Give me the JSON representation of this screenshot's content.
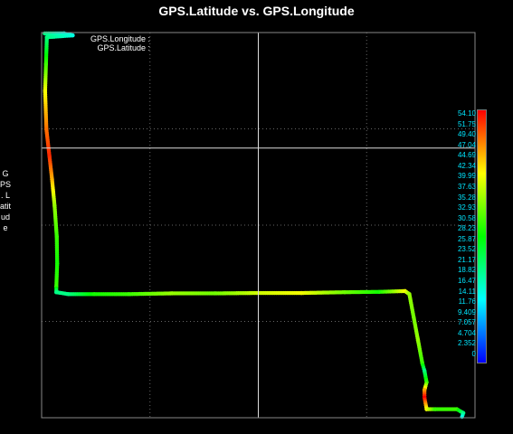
{
  "chart_data": {
    "type": "scatter",
    "title": "GPS.Latitude vs. GPS.Longitude",
    "xlabel": "",
    "ylabel": "GPS . Latitude",
    "legend_lines": [
      "GPS.Longitude :",
      "GPS.Latitude :"
    ],
    "colorbar_labels": [
      "54.10",
      "51.75",
      "49.40",
      "47.04",
      "44.69",
      "42.34",
      "39.99",
      "37.63",
      "35.28",
      "32.93",
      "30.58",
      "28.23",
      "25.87",
      "23.52",
      "21.17",
      "18.82",
      "16.47",
      "14.11",
      "11.76",
      "9.409",
      "7.057",
      "4.704",
      "2.352",
      "0"
    ],
    "colorbar_range": [
      0,
      54.1
    ],
    "grid": true,
    "grid_style": "dotted",
    "cursor": {
      "x_fraction": 0.5,
      "y_fraction": 0.3
    },
    "track": [
      [
        0.005,
        1.0,
        20
      ],
      [
        0.05,
        1.0,
        15
      ],
      [
        0.07,
        0.995,
        15
      ],
      [
        0.01,
        0.99,
        20
      ],
      [
        0.008,
        0.92,
        30
      ],
      [
        0.006,
        0.85,
        40
      ],
      [
        0.009,
        0.75,
        48
      ],
      [
        0.016,
        0.68,
        52
      ],
      [
        0.022,
        0.62,
        45
      ],
      [
        0.028,
        0.55,
        35
      ],
      [
        0.033,
        0.47,
        30
      ],
      [
        0.034,
        0.4,
        28
      ],
      [
        0.032,
        0.34,
        30
      ],
      [
        0.032,
        0.325,
        20
      ],
      [
        0.06,
        0.32,
        20
      ],
      [
        0.12,
        0.32,
        28
      ],
      [
        0.2,
        0.32,
        30
      ],
      [
        0.3,
        0.322,
        35
      ],
      [
        0.4,
        0.322,
        33
      ],
      [
        0.5,
        0.323,
        38
      ],
      [
        0.6,
        0.323,
        40
      ],
      [
        0.7,
        0.325,
        33
      ],
      [
        0.78,
        0.326,
        28
      ],
      [
        0.84,
        0.328,
        40
      ],
      [
        0.85,
        0.32,
        35
      ],
      [
        0.86,
        0.26,
        33
      ],
      [
        0.87,
        0.2,
        35
      ],
      [
        0.88,
        0.14,
        30
      ],
      [
        0.885,
        0.12,
        20
      ],
      [
        0.89,
        0.09,
        30
      ],
      [
        0.885,
        0.07,
        45
      ],
      [
        0.885,
        0.05,
        54
      ],
      [
        0.89,
        0.02,
        40
      ],
      [
        0.91,
        0.02,
        30
      ],
      [
        0.96,
        0.02,
        30
      ],
      [
        0.975,
        0.01,
        20
      ],
      [
        0.972,
        0.0,
        15
      ]
    ]
  }
}
